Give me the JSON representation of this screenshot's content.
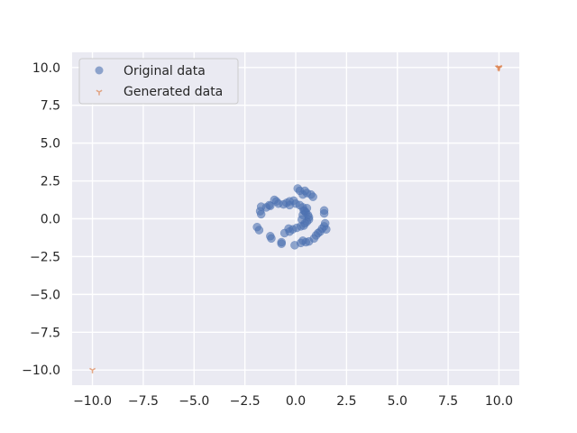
{
  "chart_data": {
    "type": "scatter",
    "xlim": [
      -11,
      11
    ],
    "ylim": [
      -11,
      11
    ],
    "x_ticks": [
      -10,
      -7.5,
      -5,
      -2.5,
      0,
      2.5,
      5,
      7.5,
      10
    ],
    "x_tick_labels": [
      "−10.0",
      "−7.5",
      "−5.0",
      "−2.5",
      "0.0",
      "2.5",
      "5.0",
      "7.5",
      "10.0"
    ],
    "y_ticks": [
      10,
      7.5,
      5,
      2.5,
      0,
      -2.5,
      -5,
      -7.5,
      -10
    ],
    "y_tick_labels": [
      "10.0",
      "7.5",
      "5.0",
      "2.5",
      "0.0",
      "−2.5",
      "−5.0",
      "−7.5",
      "−10.0"
    ],
    "grid": true,
    "legend_position": "top-left",
    "series": [
      {
        "name": "Original data",
        "marker": "circle",
        "color": "#4c72b0",
        "points": [
          [
            0.1,
            2.0
          ],
          [
            0.2,
            1.85
          ],
          [
            0.45,
            1.85
          ],
          [
            0.55,
            1.7
          ],
          [
            0.75,
            1.6
          ],
          [
            0.85,
            1.45
          ],
          [
            0.35,
            1.6
          ],
          [
            -0.1,
            1.2
          ],
          [
            -0.3,
            1.15
          ],
          [
            -0.45,
            1.05
          ],
          [
            -0.6,
            0.95
          ],
          [
            -0.85,
            1.0
          ],
          [
            -0.95,
            1.15
          ],
          [
            -1.05,
            1.25
          ],
          [
            -1.3,
            0.9
          ],
          [
            -1.45,
            0.75
          ],
          [
            -1.7,
            0.8
          ],
          [
            -1.75,
            0.5
          ],
          [
            -1.7,
            0.3
          ],
          [
            -1.25,
            0.85
          ],
          [
            -0.3,
            0.9
          ],
          [
            0.0,
            1.0
          ],
          [
            0.2,
            0.9
          ],
          [
            0.35,
            0.75
          ],
          [
            0.4,
            0.55
          ],
          [
            0.5,
            0.4
          ],
          [
            0.6,
            0.25
          ],
          [
            0.65,
            0.1
          ],
          [
            0.65,
            -0.05
          ],
          [
            0.55,
            -0.2
          ],
          [
            0.45,
            -0.3
          ],
          [
            0.4,
            -0.45
          ],
          [
            0.25,
            -0.5
          ],
          [
            0.05,
            -0.6
          ],
          [
            -0.15,
            -0.7
          ],
          [
            -0.35,
            -0.65
          ],
          [
            -0.3,
            -0.85
          ],
          [
            -0.55,
            -0.95
          ],
          [
            0.3,
            -0.05
          ],
          [
            0.35,
            0.25
          ],
          [
            0.45,
            0.5
          ],
          [
            0.55,
            0.7
          ],
          [
            -1.9,
            -0.55
          ],
          [
            -1.8,
            -0.75
          ],
          [
            -1.25,
            -1.15
          ],
          [
            -1.2,
            -1.3
          ],
          [
            -0.7,
            -1.55
          ],
          [
            -0.7,
            -1.65
          ],
          [
            -0.05,
            -1.75
          ],
          [
            0.25,
            -1.6
          ],
          [
            0.35,
            -1.45
          ],
          [
            0.5,
            -1.55
          ],
          [
            0.65,
            -1.5
          ],
          [
            0.9,
            -1.3
          ],
          [
            1.0,
            -1.1
          ],
          [
            1.1,
            -0.95
          ],
          [
            1.2,
            -0.85
          ],
          [
            1.3,
            -0.65
          ],
          [
            1.4,
            -0.5
          ],
          [
            1.45,
            -0.3
          ],
          [
            1.4,
            0.35
          ],
          [
            1.4,
            0.55
          ],
          [
            1.5,
            -0.7
          ]
        ]
      },
      {
        "name": "Generated data",
        "marker": "tri_down",
        "color": "#dd8452",
        "points": [
          [
            10.0,
            10.0
          ],
          [
            10.0,
            9.95
          ],
          [
            9.95,
            10.0
          ],
          [
            10.02,
            10.02
          ],
          [
            -10.0,
            -10.0
          ]
        ]
      }
    ]
  }
}
